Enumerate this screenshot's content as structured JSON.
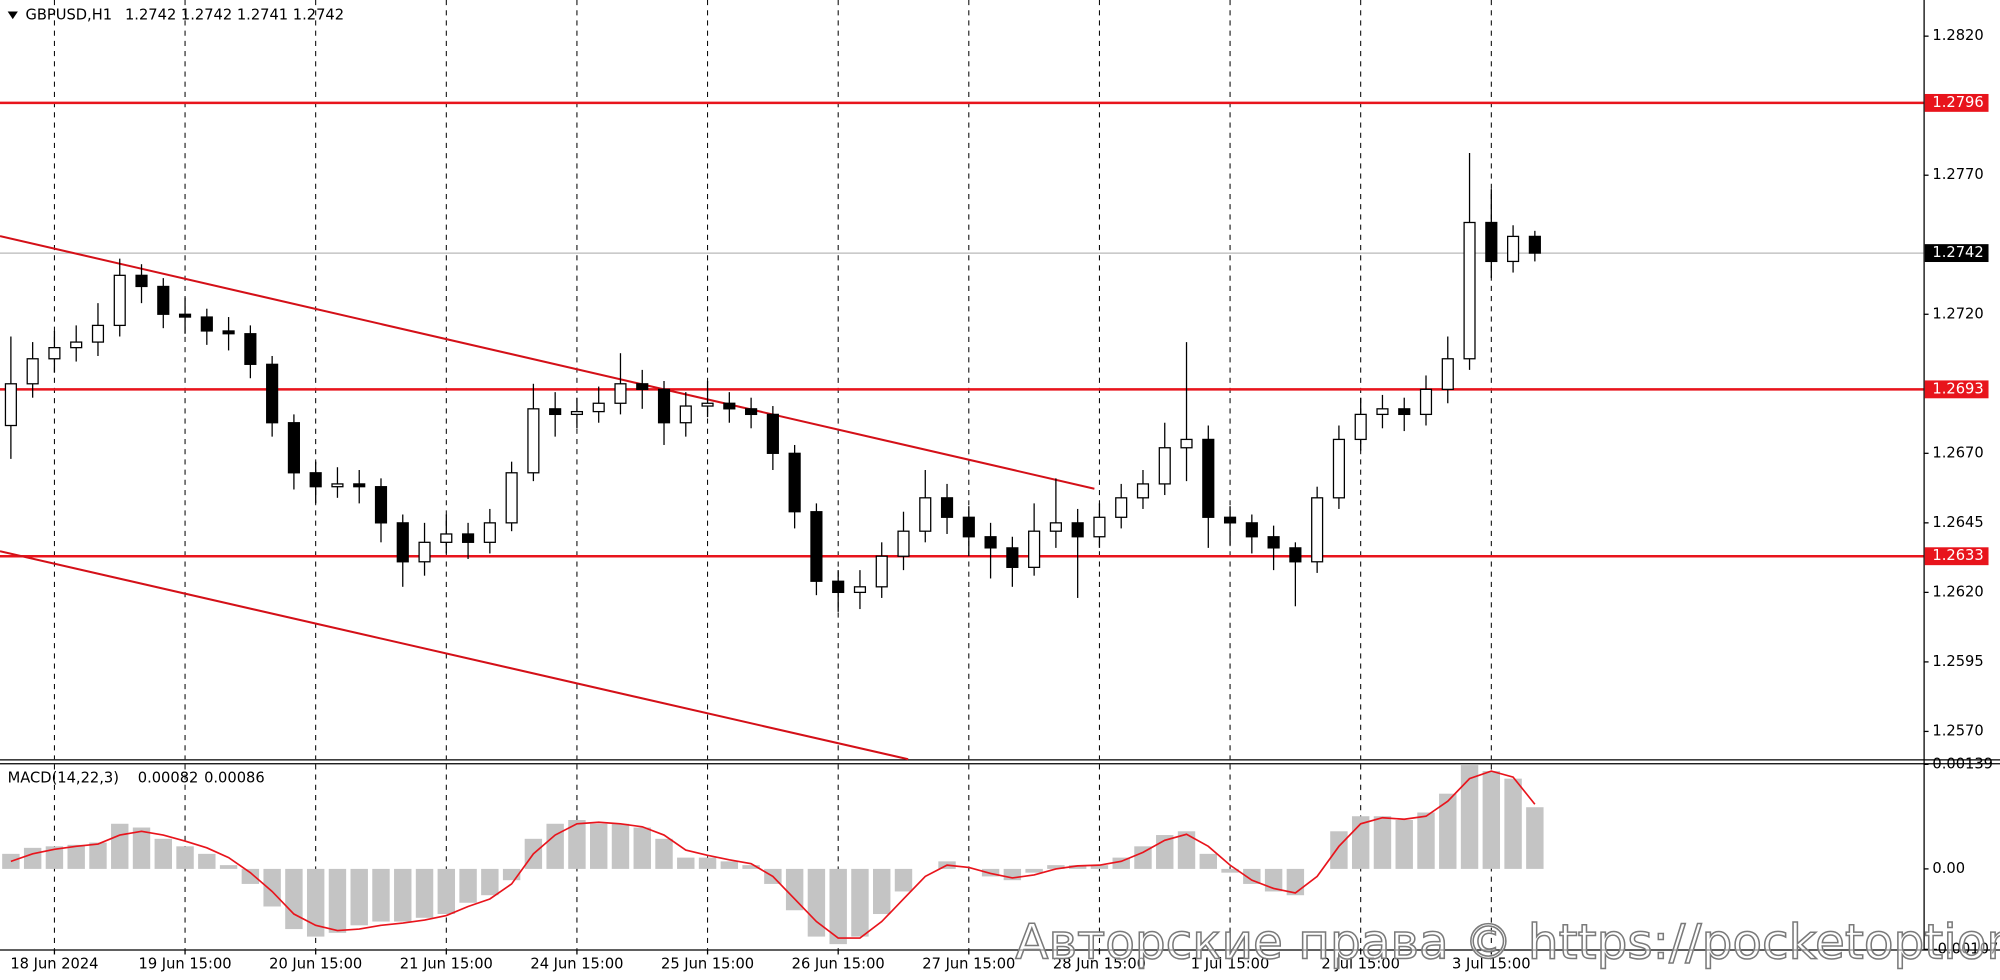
{
  "chart_data": [
    {
      "type": "candlestick",
      "title": "GBPUSD,H1",
      "subtitle": "1.2742 1.2742 1.2741 1.2742",
      "open": [
        1.268,
        1.2695,
        1.2704,
        1.2708,
        1.271,
        1.2716,
        1.2734,
        1.273,
        1.272,
        1.2719,
        1.2714,
        1.2713,
        1.2702,
        1.2681,
        1.2663,
        1.2658,
        1.2659,
        1.2658,
        1.2645,
        1.2631,
        1.2638,
        1.2641,
        1.2638,
        1.2645,
        1.2663,
        1.2686,
        1.2684,
        1.2685,
        1.2688,
        1.2695,
        1.2693,
        1.2681,
        1.2687,
        1.2688,
        1.2686,
        1.2684,
        1.267,
        1.2649,
        1.2624,
        1.262,
        1.2622,
        1.2633,
        1.2642,
        1.2654,
        1.2647,
        1.264,
        1.2636,
        1.2629,
        1.2642,
        1.2645,
        1.264,
        1.2647,
        1.2654,
        1.2659,
        1.2672,
        1.2675,
        1.2647,
        1.2645,
        1.264,
        1.2636,
        1.2631,
        1.2654,
        1.2675,
        1.2684,
        1.2686,
        1.2684,
        1.2693,
        1.2704,
        1.2753,
        1.2739,
        1.2748
      ],
      "high": [
        1.2712,
        1.271,
        1.2714,
        1.2716,
        1.2724,
        1.274,
        1.2738,
        1.2733,
        1.2726,
        1.2722,
        1.2719,
        1.2716,
        1.2705,
        1.2684,
        1.2667,
        1.2665,
        1.2664,
        1.2661,
        1.2648,
        1.2645,
        1.2648,
        1.2645,
        1.265,
        1.2667,
        1.2695,
        1.2692,
        1.269,
        1.2694,
        1.2706,
        1.27,
        1.2696,
        1.2692,
        1.2696,
        1.2692,
        1.269,
        1.2687,
        1.2673,
        1.2652,
        1.2628,
        1.2628,
        1.2638,
        1.2649,
        1.2664,
        1.2659,
        1.2651,
        1.2645,
        1.264,
        1.2652,
        1.2661,
        1.265,
        1.2652,
        1.2659,
        1.2664,
        1.2681,
        1.271,
        1.268,
        1.2651,
        1.2648,
        1.2644,
        1.2638,
        1.2658,
        1.268,
        1.269,
        1.2691,
        1.269,
        1.2698,
        1.2712,
        1.2778,
        1.2765,
        1.2752,
        1.275
      ],
      "low": [
        1.2668,
        1.269,
        1.2699,
        1.2703,
        1.2705,
        1.2712,
        1.2724,
        1.2715,
        1.2713,
        1.2709,
        1.2707,
        1.2697,
        1.2676,
        1.2657,
        1.2652,
        1.2654,
        1.2652,
        1.2638,
        1.2622,
        1.2626,
        1.2634,
        1.2632,
        1.2634,
        1.2642,
        1.266,
        1.2676,
        1.2679,
        1.2681,
        1.2684,
        1.2686,
        1.2673,
        1.2676,
        1.2683,
        1.2681,
        1.2679,
        1.2664,
        1.2643,
        1.2619,
        1.2613,
        1.2614,
        1.2618,
        1.2628,
        1.2638,
        1.2641,
        1.2633,
        1.2625,
        1.2622,
        1.2626,
        1.2636,
        1.2618,
        1.2636,
        1.2643,
        1.265,
        1.2655,
        1.266,
        1.2636,
        1.2637,
        1.2634,
        1.2628,
        1.2615,
        1.2627,
        1.265,
        1.2671,
        1.2679,
        1.2678,
        1.268,
        1.2688,
        1.27,
        1.2733,
        1.2735,
        1.2739
      ],
      "close": [
        1.2695,
        1.2704,
        1.2708,
        1.271,
        1.2716,
        1.2734,
        1.273,
        1.272,
        1.2719,
        1.2714,
        1.2713,
        1.2702,
        1.2681,
        1.2663,
        1.2658,
        1.2659,
        1.2658,
        1.2645,
        1.2631,
        1.2638,
        1.2641,
        1.2638,
        1.2645,
        1.2663,
        1.2686,
        1.2684,
        1.2685,
        1.2688,
        1.2695,
        1.2693,
        1.2681,
        1.2687,
        1.2688,
        1.2686,
        1.2684,
        1.267,
        1.2649,
        1.2624,
        1.262,
        1.2622,
        1.2633,
        1.2642,
        1.2654,
        1.2647,
        1.264,
        1.2636,
        1.2629,
        1.2642,
        1.2645,
        1.264,
        1.2647,
        1.2654,
        1.2659,
        1.2672,
        1.2675,
        1.2647,
        1.2645,
        1.264,
        1.2636,
        1.2631,
        1.2654,
        1.2675,
        1.2684,
        1.2686,
        1.2684,
        1.2693,
        1.2704,
        1.2753,
        1.2739,
        1.2748,
        1.2742
      ],
      "up_color": "#ffffff",
      "down_color": "#000000",
      "xlim": [
        -0.5,
        87.85
      ],
      "xticks": [
        {
          "value": 2,
          "label": "18 Jun 2024"
        },
        {
          "value": 8,
          "label": "19 Jun 15:00"
        },
        {
          "value": 14,
          "label": "20 Jun 15:00"
        },
        {
          "value": 20,
          "label": "21 Jun 15:00"
        },
        {
          "value": 26,
          "label": "24 Jun 15:00"
        },
        {
          "value": 32,
          "label": "25 Jun 15:00"
        },
        {
          "value": 38,
          "label": "26 Jun 15:00"
        },
        {
          "value": 44,
          "label": "27 Jun 15:00"
        },
        {
          "value": 50,
          "label": "28 Jun 15:00"
        },
        {
          "value": 56,
          "label": "1 Jul 15:00"
        },
        {
          "value": 62,
          "label": "2 Jul 15:00"
        },
        {
          "value": 68,
          "label": "3 Jul 15:00"
        }
      ],
      "ylim": [
        1.256,
        1.2833
      ],
      "yticks": [
        {
          "value": 1.282,
          "label": "1.2820"
        },
        {
          "value": 1.277,
          "label": "1.2770"
        },
        {
          "value": 1.272,
          "label": "1.2720"
        },
        {
          "value": 1.267,
          "label": "1.2670"
        },
        1.2645,
        {
          "value": 1.262,
          "label": "1.2620"
        },
        1.2595,
        {
          "value": 1.257,
          "label": "1.2570"
        }
      ],
      "levels": [
        1.2796,
        1.2693,
        1.2633
      ],
      "level_color": "#e8141c",
      "last_price": 1.2742
    },
    {
      "type": "macd",
      "title": "MACD(14,22,3)",
      "series": [
        {
          "color": "#c4c4c4",
          "values": [
            0.0002,
            0.00028,
            0.0003,
            0.00032,
            0.00035,
            0.0006,
            0.00055,
            0.0004,
            0.0003,
            0.0002,
            5e-05,
            -0.0002,
            -0.0005,
            -0.0008,
            -0.0009,
            -0.00085,
            -0.00075,
            -0.0007,
            -0.0007,
            -0.00065,
            -0.0006,
            -0.00045,
            -0.00035,
            -0.00015,
            0.0004,
            0.0006,
            0.00065,
            0.0006,
            0.0006,
            0.00055,
            0.0004,
            0.00015,
            0.00015,
            0.0001,
            5e-05,
            -0.0002,
            -0.00055,
            -0.0009,
            -0.001,
            -0.0009,
            -0.0006,
            -0.0003,
            0,
            0.0001,
            0,
            -0.0001,
            -0.00015,
            -5e-05,
            5e-05,
            5e-05,
            5e-05,
            0.00015,
            0.0003,
            0.00045,
            0.0005,
            0.0002,
            -5e-05,
            -0.0002,
            -0.0003,
            -0.00035,
            0,
            0.0005,
            0.0007,
            0.0007,
            0.00065,
            0.00075,
            0.001,
            0.00138,
            0.0013,
            0.0012,
            0.00082
          ]
        },
        {
          "color": "#e8141c",
          "values": [
            0.0001,
            0.0002,
            0.00026,
            0.0003,
            0.00033,
            0.00045,
            0.0005,
            0.00045,
            0.00037,
            0.00028,
            0.00015,
            -5e-05,
            -0.0003,
            -0.0006,
            -0.00075,
            -0.00082,
            -0.0008,
            -0.00075,
            -0.00072,
            -0.00068,
            -0.00062,
            -0.0005,
            -0.0004,
            -0.0002,
            0.0002,
            0.00045,
            0.0006,
            0.00062,
            0.0006,
            0.00056,
            0.00045,
            0.00025,
            0.00018,
            0.00012,
            7e-05,
            -0.0001,
            -0.0004,
            -0.0007,
            -0.00092,
            -0.00092,
            -0.0007,
            -0.0004,
            -0.0001,
            5e-05,
            2e-05,
            -6e-05,
            -0.00012,
            -8e-05,
            0.0,
            4e-05,
            5e-05,
            0.0001,
            0.00022,
            0.00038,
            0.00046,
            0.0003,
            5e-05,
            -0.00015,
            -0.00026,
            -0.00032,
            -0.0001,
            0.0003,
            0.0006,
            0.00068,
            0.00066,
            0.0007,
            0.0009,
            0.0012,
            0.0013,
            0.00122,
            0.00086
          ]
        }
      ],
      "ylim": [
        -0.00107,
        0.00139
      ],
      "yticks": [
        0.00139,
        {
          "value": 0,
          "label": "0.00"
        },
        -0.00107
      ]
    }
  ],
  "watermark": "Авторские права © https://pocketoption.ru"
}
